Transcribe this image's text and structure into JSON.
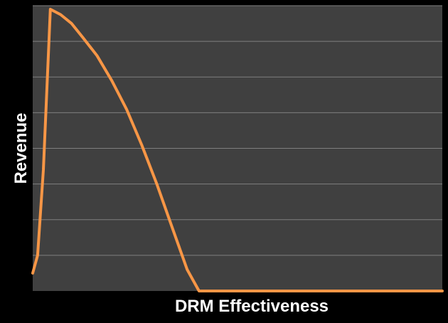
{
  "chart_data": {
    "type": "line",
    "title": "",
    "xlabel": "DRM Effectiveness",
    "ylabel": "Revenue",
    "xlim": [
      0,
      100
    ],
    "ylim": [
      0,
      8
    ],
    "grid": true,
    "legend": "none",
    "x_tick_labels": [],
    "y_tick_labels": [],
    "series": [
      {
        "x": [
          0,
          1.2,
          2.6,
          4.3,
          6.8,
          9.5,
          12.3,
          15.7,
          19.3,
          22.9,
          26.6,
          30.3,
          34.0,
          37.7,
          40.6,
          45.0,
          100
        ],
        "y": [
          0.5,
          1.0,
          3.4,
          7.9,
          7.75,
          7.5,
          7.1,
          6.6,
          5.9,
          5.1,
          4.1,
          3.0,
          1.8,
          0.6,
          0.0,
          0.0,
          0.0
        ],
        "color": "#f79646"
      }
    ],
    "colors": {
      "background": "#000000",
      "plot_area": "#404040",
      "gridline": "#7f7f7f",
      "line": "#f79646",
      "text": "#ffffff"
    }
  }
}
